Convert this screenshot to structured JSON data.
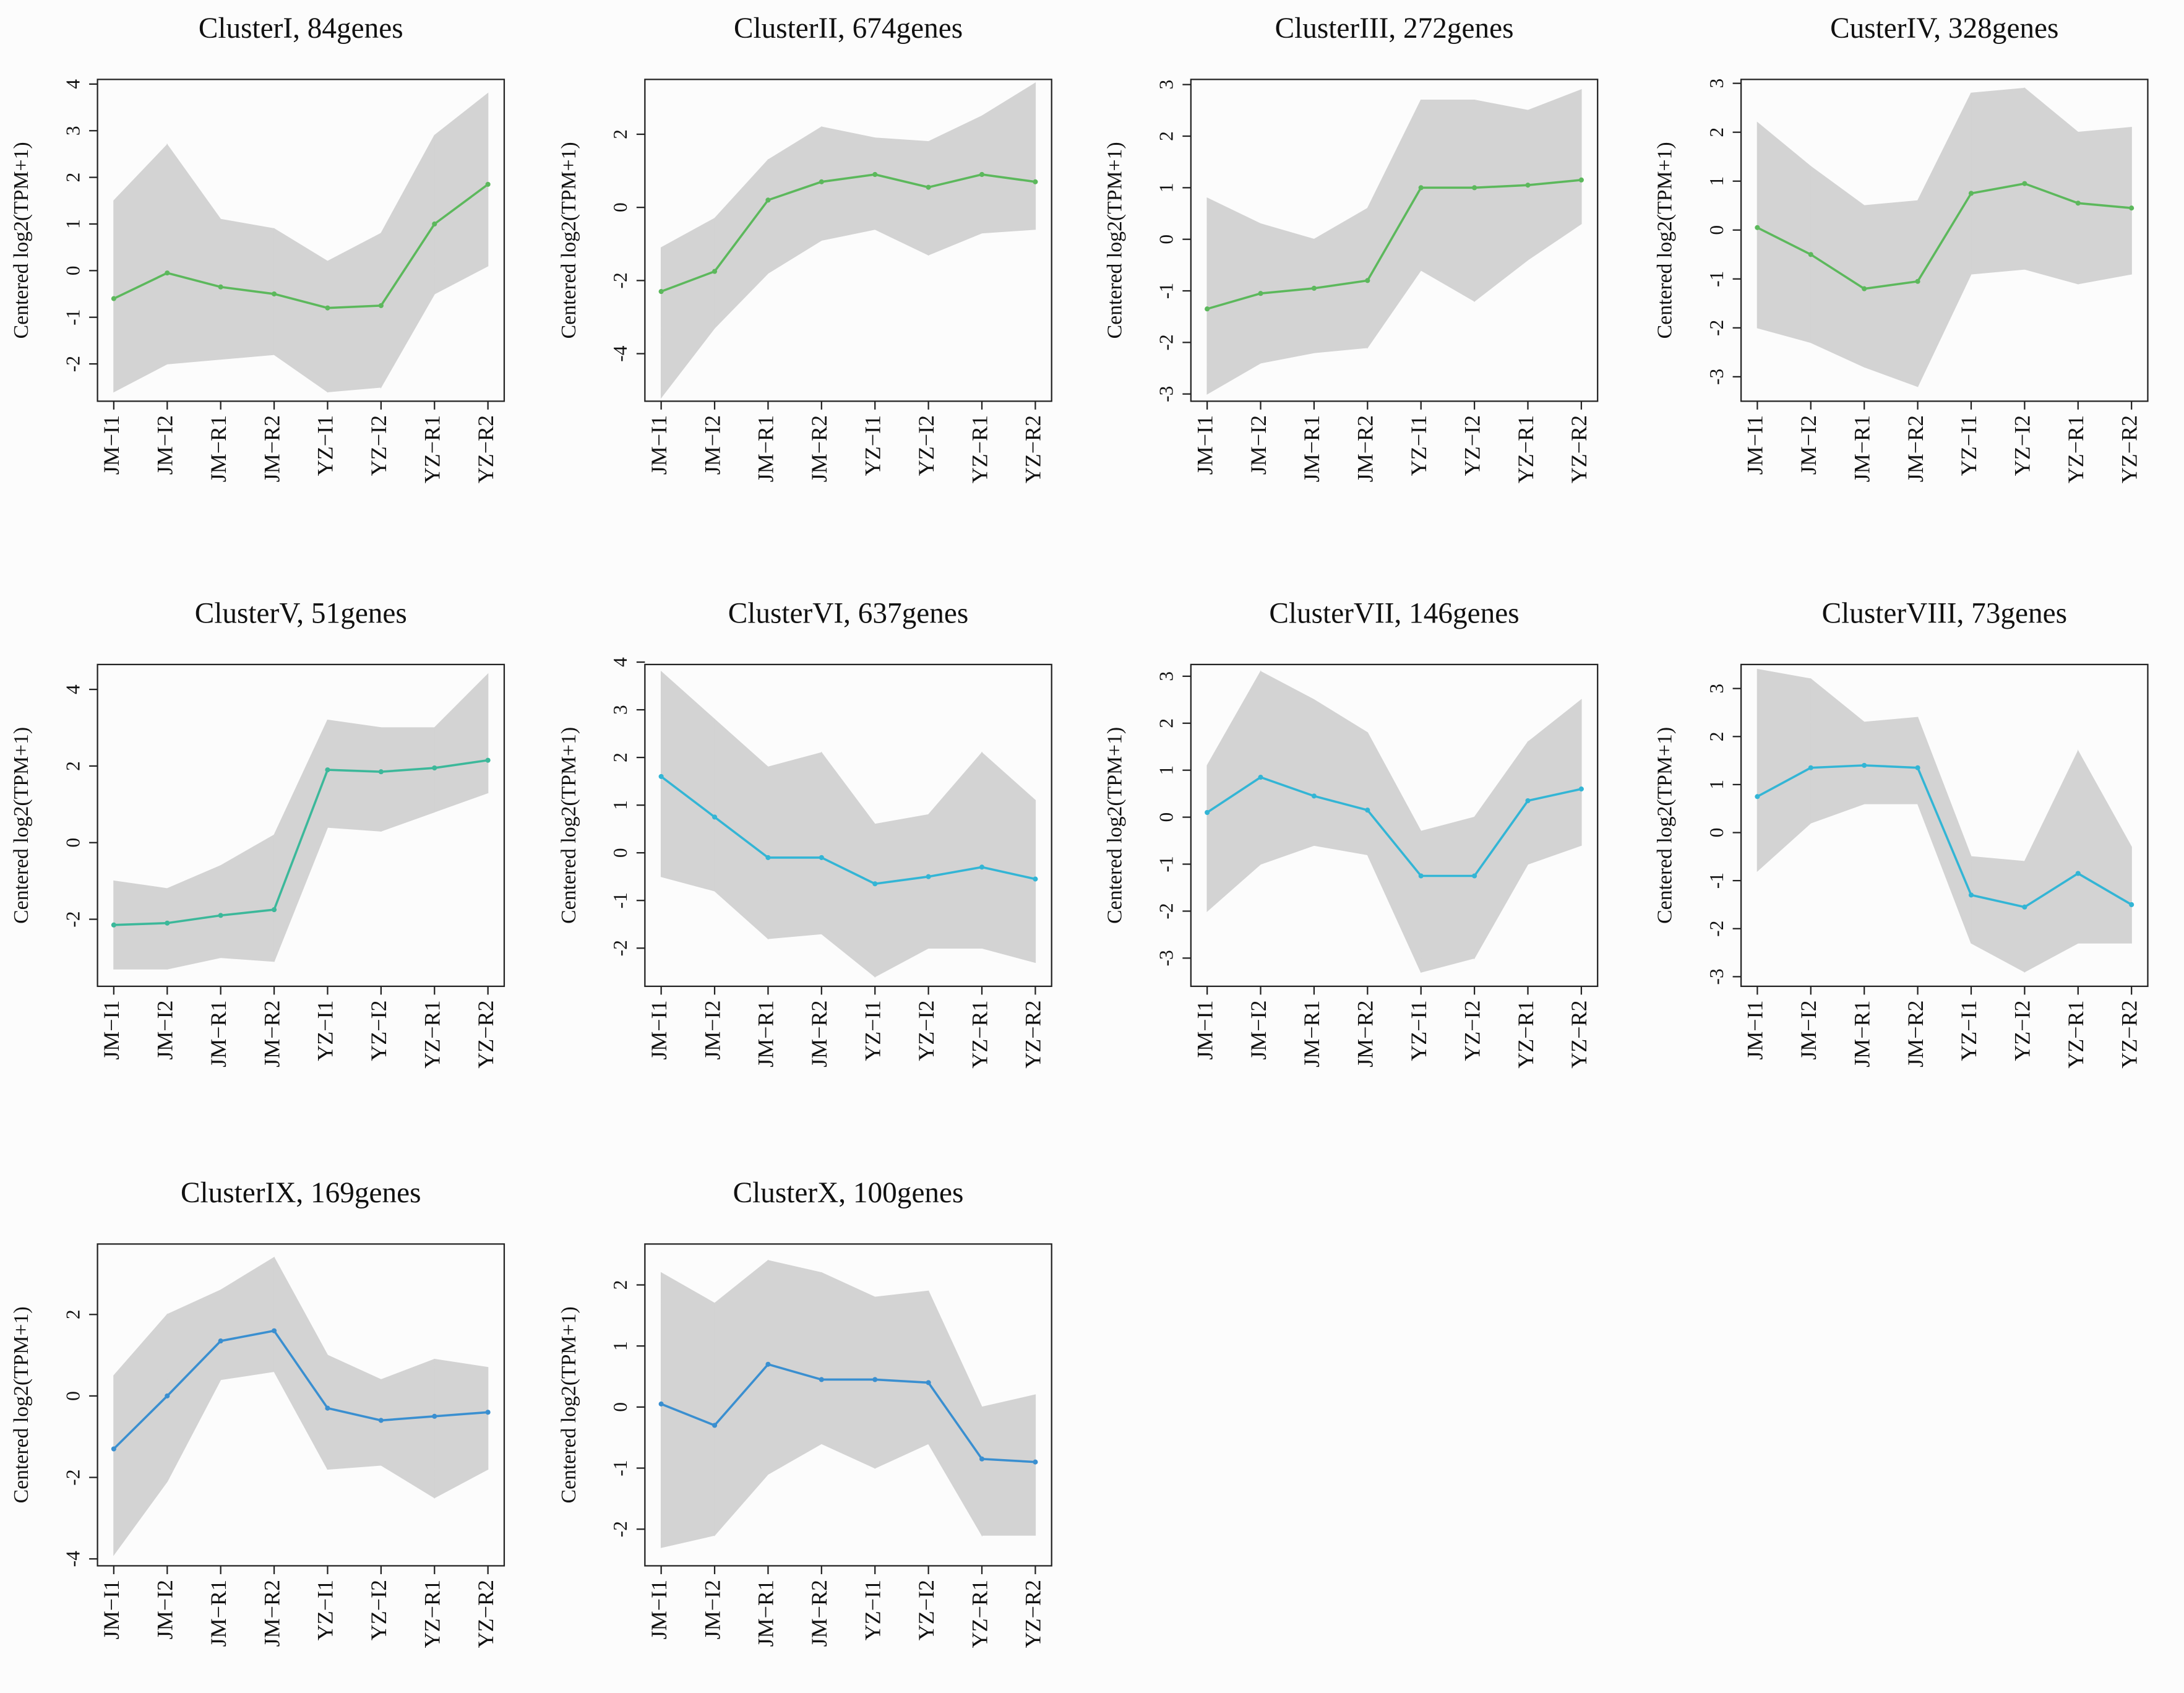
{
  "chart_data": [
    {
      "type": "line",
      "title": "ClusterI, 84genes",
      "ylabel": "Centered log2(TPM+1)",
      "categories": [
        "JM−I1",
        "JM−I2",
        "JM−R1",
        "JM−R2",
        "YZ−I1",
        "YZ−I2",
        "YZ−R1",
        "YZ−R2"
      ],
      "ylim": [
        -2.8,
        4.1
      ],
      "yticks": [
        -2,
        -1,
        0,
        1,
        2,
        3,
        4
      ],
      "range": {
        "color": "#d3d3d3",
        "low": [
          -2.6,
          -2.0,
          -1.9,
          -1.8,
          -2.6,
          -2.5,
          -0.5,
          0.1
        ],
        "high": [
          1.5,
          2.7,
          1.1,
          0.9,
          0.2,
          0.8,
          2.9,
          3.8
        ]
      },
      "series": [
        {
          "color": "#5cb85c",
          "values": [
            -0.6,
            -0.05,
            -0.35,
            -0.5,
            -0.8,
            -0.75,
            1.0,
            1.85
          ]
        }
      ]
    },
    {
      "type": "line",
      "title": "ClusterII, 674genes",
      "ylabel": "Centered log2(TPM+1)",
      "categories": [
        "JM−I1",
        "JM−I2",
        "JM−R1",
        "JM−R2",
        "YZ−I1",
        "YZ−I2",
        "YZ−R1",
        "YZ−R2"
      ],
      "ylim": [
        -5.3,
        3.5
      ],
      "yticks": [
        -4,
        -2,
        0,
        2
      ],
      "range": {
        "color": "#d3d3d3",
        "low": [
          -5.2,
          -3.3,
          -1.8,
          -0.9,
          -0.6,
          -1.3,
          -0.7,
          -0.6
        ],
        "high": [
          -1.1,
          -0.3,
          1.3,
          2.2,
          1.9,
          1.8,
          2.5,
          3.4
        ]
      },
      "series": [
        {
          "color": "#5cb85c",
          "values": [
            -2.3,
            -1.75,
            0.2,
            0.7,
            0.9,
            0.55,
            0.9,
            0.7
          ]
        }
      ]
    },
    {
      "type": "line",
      "title": "ClusterIII, 272genes",
      "ylabel": "Centered log2(TPM+1)",
      "categories": [
        "JM−I1",
        "JM−I2",
        "JM−R1",
        "JM−R2",
        "YZ−I1",
        "YZ−I2",
        "YZ−R1",
        "YZ−R2"
      ],
      "ylim": [
        -3.14,
        3.1
      ],
      "yticks": [
        -3,
        -2,
        -1,
        0,
        1,
        2,
        3
      ],
      "range": {
        "color": "#d3d3d3",
        "low": [
          -3.0,
          -2.4,
          -2.2,
          -2.1,
          -0.6,
          -1.2,
          -0.4,
          0.3
        ],
        "high": [
          0.8,
          0.3,
          0.0,
          0.6,
          2.7,
          2.7,
          2.5,
          2.9
        ]
      },
      "series": [
        {
          "color": "#5cb85c",
          "values": [
            -1.35,
            -1.05,
            -0.95,
            -0.8,
            1.0,
            1.0,
            1.05,
            1.15
          ]
        }
      ]
    },
    {
      "type": "line",
      "title": "CusterIV, 328genes",
      "ylabel": "Centered log2(TPM+1)",
      "categories": [
        "JM−I1",
        "JM−I2",
        "JM−R1",
        "JM−R2",
        "YZ−I1",
        "YZ−I2",
        "YZ−R1",
        "YZ−R2"
      ],
      "ylim": [
        -3.5,
        3.08
      ],
      "yticks": [
        -3,
        -2,
        -1,
        0,
        1,
        2,
        3
      ],
      "range": {
        "color": "#d3d3d3",
        "low": [
          -2.0,
          -2.3,
          -2.8,
          -3.2,
          -0.9,
          -0.8,
          -1.1,
          -0.9
        ],
        "high": [
          2.2,
          1.3,
          0.5,
          0.6,
          2.8,
          2.9,
          2.0,
          2.1
        ]
      },
      "series": [
        {
          "color": "#5cb85c",
          "values": [
            0.05,
            -0.5,
            -1.2,
            -1.05,
            0.75,
            0.95,
            0.55,
            0.45
          ]
        }
      ]
    },
    {
      "type": "line",
      "title": "ClusterV, 51genes",
      "ylabel": "Centered log2(TPM+1)",
      "categories": [
        "JM−I1",
        "JM−I2",
        "JM−R1",
        "JM−R2",
        "YZ−I1",
        "YZ−I2",
        "YZ−R1",
        "YZ−R2"
      ],
      "ylim": [
        -3.75,
        4.65
      ],
      "yticks": [
        -2,
        0,
        2,
        4
      ],
      "range": {
        "color": "#d3d3d3",
        "low": [
          -3.3,
          -3.3,
          -3.0,
          -3.1,
          0.4,
          0.3,
          0.8,
          1.3
        ],
        "high": [
          -1.0,
          -1.2,
          -0.6,
          0.2,
          3.2,
          3.0,
          3.0,
          4.4
        ]
      },
      "series": [
        {
          "color": "#3cb89a",
          "values": [
            -2.15,
            -2.1,
            -1.9,
            -1.75,
            1.9,
            1.85,
            1.95,
            2.15
          ]
        }
      ]
    },
    {
      "type": "line",
      "title": "ClusterVI, 637genes",
      "ylabel": "Centered log2(TPM+1)",
      "categories": [
        "JM−I1",
        "JM−I2",
        "JM−R1",
        "JM−R2",
        "YZ−I1",
        "YZ−I2",
        "YZ−R1",
        "YZ−R2"
      ],
      "ylim": [
        -2.8,
        3.95
      ],
      "yticks": [
        -2,
        -1,
        0,
        1,
        2,
        3,
        4
      ],
      "range": {
        "color": "#d3d3d3",
        "low": [
          -0.5,
          -0.8,
          -1.8,
          -1.7,
          -2.6,
          -2.0,
          -2.0,
          -2.3
        ],
        "high": [
          3.8,
          2.8,
          1.8,
          2.1,
          0.6,
          0.8,
          2.1,
          1.1
        ]
      },
      "series": [
        {
          "color": "#33b5d5",
          "values": [
            1.6,
            0.75,
            -0.1,
            -0.1,
            -0.65,
            -0.5,
            -0.3,
            -0.55
          ]
        }
      ]
    },
    {
      "type": "line",
      "title": "ClusterVII, 146genes",
      "ylabel": "Centered log2(TPM+1)",
      "categories": [
        "JM−I1",
        "JM−I2",
        "JM−R1",
        "JM−R2",
        "YZ−I1",
        "YZ−I2",
        "YZ−R1",
        "YZ−R2"
      ],
      "ylim": [
        -3.6,
        3.25
      ],
      "yticks": [
        -3,
        -2,
        -1,
        0,
        1,
        2,
        3
      ],
      "range": {
        "color": "#d3d3d3",
        "low": [
          -2.0,
          -1.0,
          -0.6,
          -0.8,
          -3.3,
          -3.0,
          -1.0,
          -0.6
        ],
        "high": [
          1.1,
          3.1,
          2.5,
          1.8,
          -0.3,
          0.0,
          1.6,
          2.5
        ]
      },
      "series": [
        {
          "color": "#33b5d5",
          "values": [
            0.1,
            0.85,
            0.45,
            0.15,
            -1.25,
            -1.25,
            0.35,
            0.6
          ]
        }
      ]
    },
    {
      "type": "line",
      "title": "ClusterVIII, 73genes",
      "ylabel": "Centered log2(TPM+1)",
      "categories": [
        "JM−I1",
        "JM−I2",
        "JM−R1",
        "JM−R2",
        "YZ−I1",
        "YZ−I2",
        "YZ−R1",
        "YZ−R2"
      ],
      "ylim": [
        -3.2,
        3.5
      ],
      "yticks": [
        -3,
        -2,
        -1,
        0,
        1,
        2,
        3
      ],
      "range": {
        "color": "#d3d3d3",
        "low": [
          -0.8,
          0.2,
          0.6,
          0.6,
          -2.3,
          -2.9,
          -2.3,
          -2.3
        ],
        "high": [
          3.4,
          3.2,
          2.3,
          2.4,
          -0.5,
          -0.6,
          1.7,
          -0.3
        ]
      },
      "series": [
        {
          "color": "#33b5d5",
          "values": [
            0.75,
            1.35,
            1.4,
            1.35,
            -1.3,
            -1.55,
            -0.85,
            -1.5
          ]
        }
      ]
    },
    {
      "type": "line",
      "title": "ClusterIX, 169genes",
      "ylabel": "Centered log2(TPM+1)",
      "categories": [
        "JM−I1",
        "JM−I2",
        "JM−R1",
        "JM−R2",
        "YZ−I1",
        "YZ−I2",
        "YZ−R1",
        "YZ−R2"
      ],
      "ylim": [
        -4.17,
        3.73
      ],
      "yticks": [
        -4,
        -2,
        0,
        2
      ],
      "range": {
        "color": "#d3d3d3",
        "low": [
          -3.9,
          -2.1,
          0.4,
          0.6,
          -1.8,
          -1.7,
          -2.5,
          -1.8
        ],
        "high": [
          0.5,
          2.0,
          2.6,
          3.4,
          1.0,
          0.4,
          0.9,
          0.7
        ]
      },
      "series": [
        {
          "color": "#3a8fd0",
          "values": [
            -1.3,
            0.0,
            1.35,
            1.6,
            -0.3,
            -0.6,
            -0.5,
            -0.4
          ]
        }
      ]
    },
    {
      "type": "line",
      "title": "ClusterX, 100genes",
      "ylabel": "Centered log2(TPM+1)",
      "categories": [
        "JM−I1",
        "JM−I2",
        "JM−R1",
        "JM−R2",
        "YZ−I1",
        "YZ−I2",
        "YZ−R1",
        "YZ−R2"
      ],
      "ylim": [
        -2.6,
        2.67
      ],
      "yticks": [
        -2,
        -1,
        0,
        1,
        2
      ],
      "range": {
        "color": "#d3d3d3",
        "low": [
          -2.3,
          -2.1,
          -1.1,
          -0.6,
          -1.0,
          -0.6,
          -2.1,
          -2.1
        ],
        "high": [
          2.2,
          1.7,
          2.4,
          2.2,
          1.8,
          1.9,
          0.0,
          0.2
        ]
      },
      "series": [
        {
          "color": "#3a8fd0",
          "values": [
            0.05,
            -0.3,
            0.7,
            0.45,
            0.45,
            0.4,
            -0.85,
            -0.9
          ]
        }
      ]
    }
  ]
}
